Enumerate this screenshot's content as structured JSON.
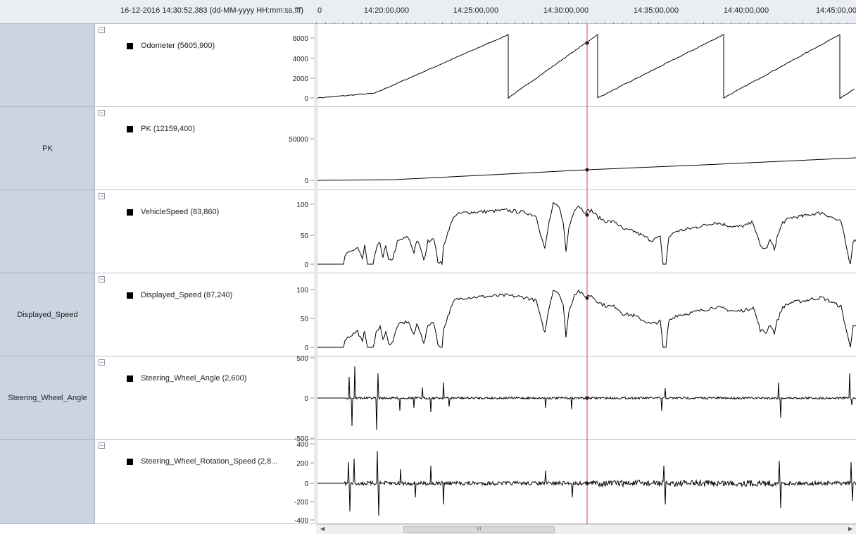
{
  "header": {
    "timestamp": "16-12-2016 14:30:52,383 (dd-MM-yyyy HH:mm:ss,fff) ",
    "time_ticks": [
      "0",
      "14:20:00,000",
      "14:25:00,000",
      "14:30:00,000",
      "14:35:00,000",
      "14:40:00,000",
      "14:45:00,00"
    ]
  },
  "groups": [
    "",
    "PK",
    "",
    "Displayed_Speed",
    "Steering_Wheel_Angle",
    ""
  ],
  "signals": [
    {
      "legend": "Odometer   (5605,900)",
      "y_ticks": [
        "6000",
        "4000",
        "2000",
        "0"
      ],
      "cursor_value": 5605.9
    },
    {
      "legend": "PK   (12159,400)",
      "y_ticks": [
        "50000",
        "0"
      ],
      "cursor_value": 12159.4
    },
    {
      "legend": "VehicleSpeed   (83,860)",
      "y_ticks": [
        "100",
        "50",
        "0"
      ],
      "cursor_value": 83.86
    },
    {
      "legend": "Displayed_Speed   (87,240)",
      "y_ticks": [
        "100",
        "50",
        "0"
      ],
      "cursor_value": 87.24
    },
    {
      "legend": "Steering_Wheel_Angle   (2,600)",
      "y_ticks": [
        "500",
        "0",
        "-500"
      ],
      "cursor_value": 2.6
    },
    {
      "legend": "Steering_Wheel_Rotation_Speed   (2,8...",
      "y_ticks": [
        "400",
        "200",
        "0",
        "-200",
        "-400"
      ],
      "cursor_value": 2.8
    }
  ],
  "cursor_color": "#e03c3c",
  "scrollbar": {
    "grip": "III"
  }
}
